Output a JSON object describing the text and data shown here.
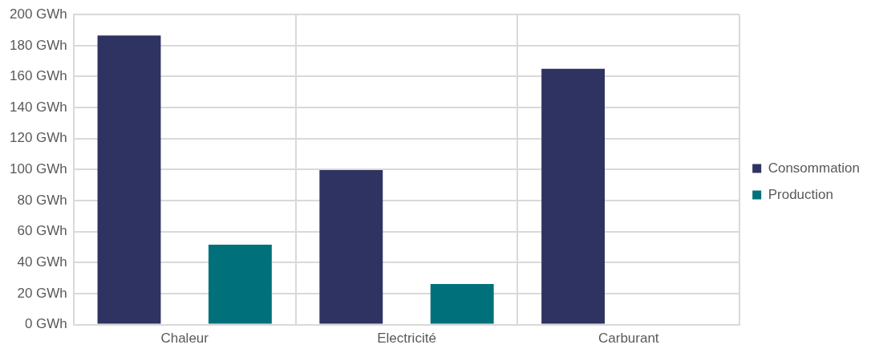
{
  "chart_data": {
    "type": "bar",
    "categories": [
      "Chaleur",
      "Electricité",
      "Carburant"
    ],
    "series": [
      {
        "name": "Consommation",
        "color": "#2e3362",
        "values": [
          186.5,
          99.7,
          165.1
        ]
      },
      {
        "name": "Production",
        "color": "#00717a",
        "values": [
          51.5,
          26.2,
          0
        ]
      }
    ],
    "ylim": [
      0,
      200
    ],
    "yticks": [
      {
        "value": 0,
        "label": "0 GWh"
      },
      {
        "value": 20,
        "label": "20 GWh"
      },
      {
        "value": 40,
        "label": "40 GWh"
      },
      {
        "value": 60,
        "label": "60 GWh"
      },
      {
        "value": 80,
        "label": "80 GWh"
      },
      {
        "value": 100,
        "label": "100 GWh"
      },
      {
        "value": 120,
        "label": "120 GWh"
      },
      {
        "value": 140,
        "label": "140 GWh"
      },
      {
        "value": 160,
        "label": "160 GWh"
      },
      {
        "value": 180,
        "label": "180 GWh"
      },
      {
        "value": 200,
        "label": "200 GWh"
      }
    ],
    "grid": true,
    "legend": "right"
  }
}
